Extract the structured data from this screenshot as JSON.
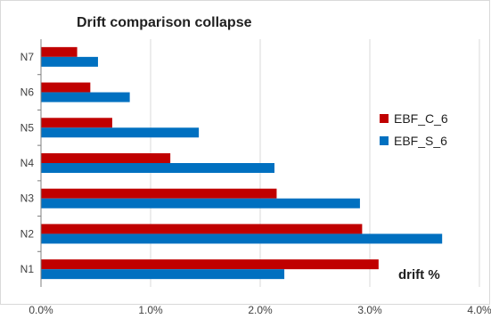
{
  "chart_data": {
    "type": "bar",
    "orientation": "horizontal",
    "title": "Drift comparison collapse",
    "annotation": "drift %",
    "categories": [
      "N1",
      "N2",
      "N3",
      "N4",
      "N5",
      "N6",
      "N7"
    ],
    "xlim": [
      0,
      4.0
    ],
    "x_ticks": [
      "0.0%",
      "1.0%",
      "2.0%",
      "3.0%",
      "4.0%"
    ],
    "grid": "vertical",
    "legend_position": "right",
    "series": [
      {
        "name": "EBF_C_6",
        "color": "#c00000",
        "values": [
          3.08,
          2.93,
          2.15,
          1.18,
          0.65,
          0.45,
          0.33
        ]
      },
      {
        "name": "EBF_S_6",
        "color": "#0070c0",
        "values": [
          2.22,
          3.66,
          2.91,
          2.13,
          1.44,
          0.81,
          0.52
        ]
      }
    ]
  }
}
